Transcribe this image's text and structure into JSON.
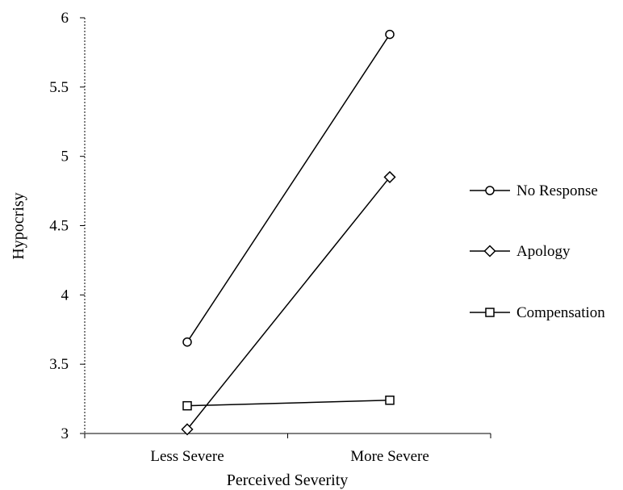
{
  "chart_data": {
    "type": "line",
    "title": "",
    "xlabel": "Perceived Severity",
    "ylabel": "Hypocrisy",
    "categories": [
      "Less Severe",
      "More Severe"
    ],
    "ylim": [
      3,
      6
    ],
    "yticks": [
      "3",
      "3.5",
      "4",
      "4.5",
      "5",
      "5.5",
      "6"
    ],
    "grid": false,
    "legend_position": "right",
    "series": [
      {
        "name": "No Response",
        "marker": "circle",
        "values": [
          3.66,
          5.88
        ]
      },
      {
        "name": "Apology",
        "marker": "diamond",
        "values": [
          3.03,
          4.85
        ]
      },
      {
        "name": "Compensation",
        "marker": "square",
        "values": [
          3.2,
          3.24
        ]
      }
    ],
    "colors": {
      "line": "#000000",
      "marker_fill": "#ffffff"
    }
  }
}
